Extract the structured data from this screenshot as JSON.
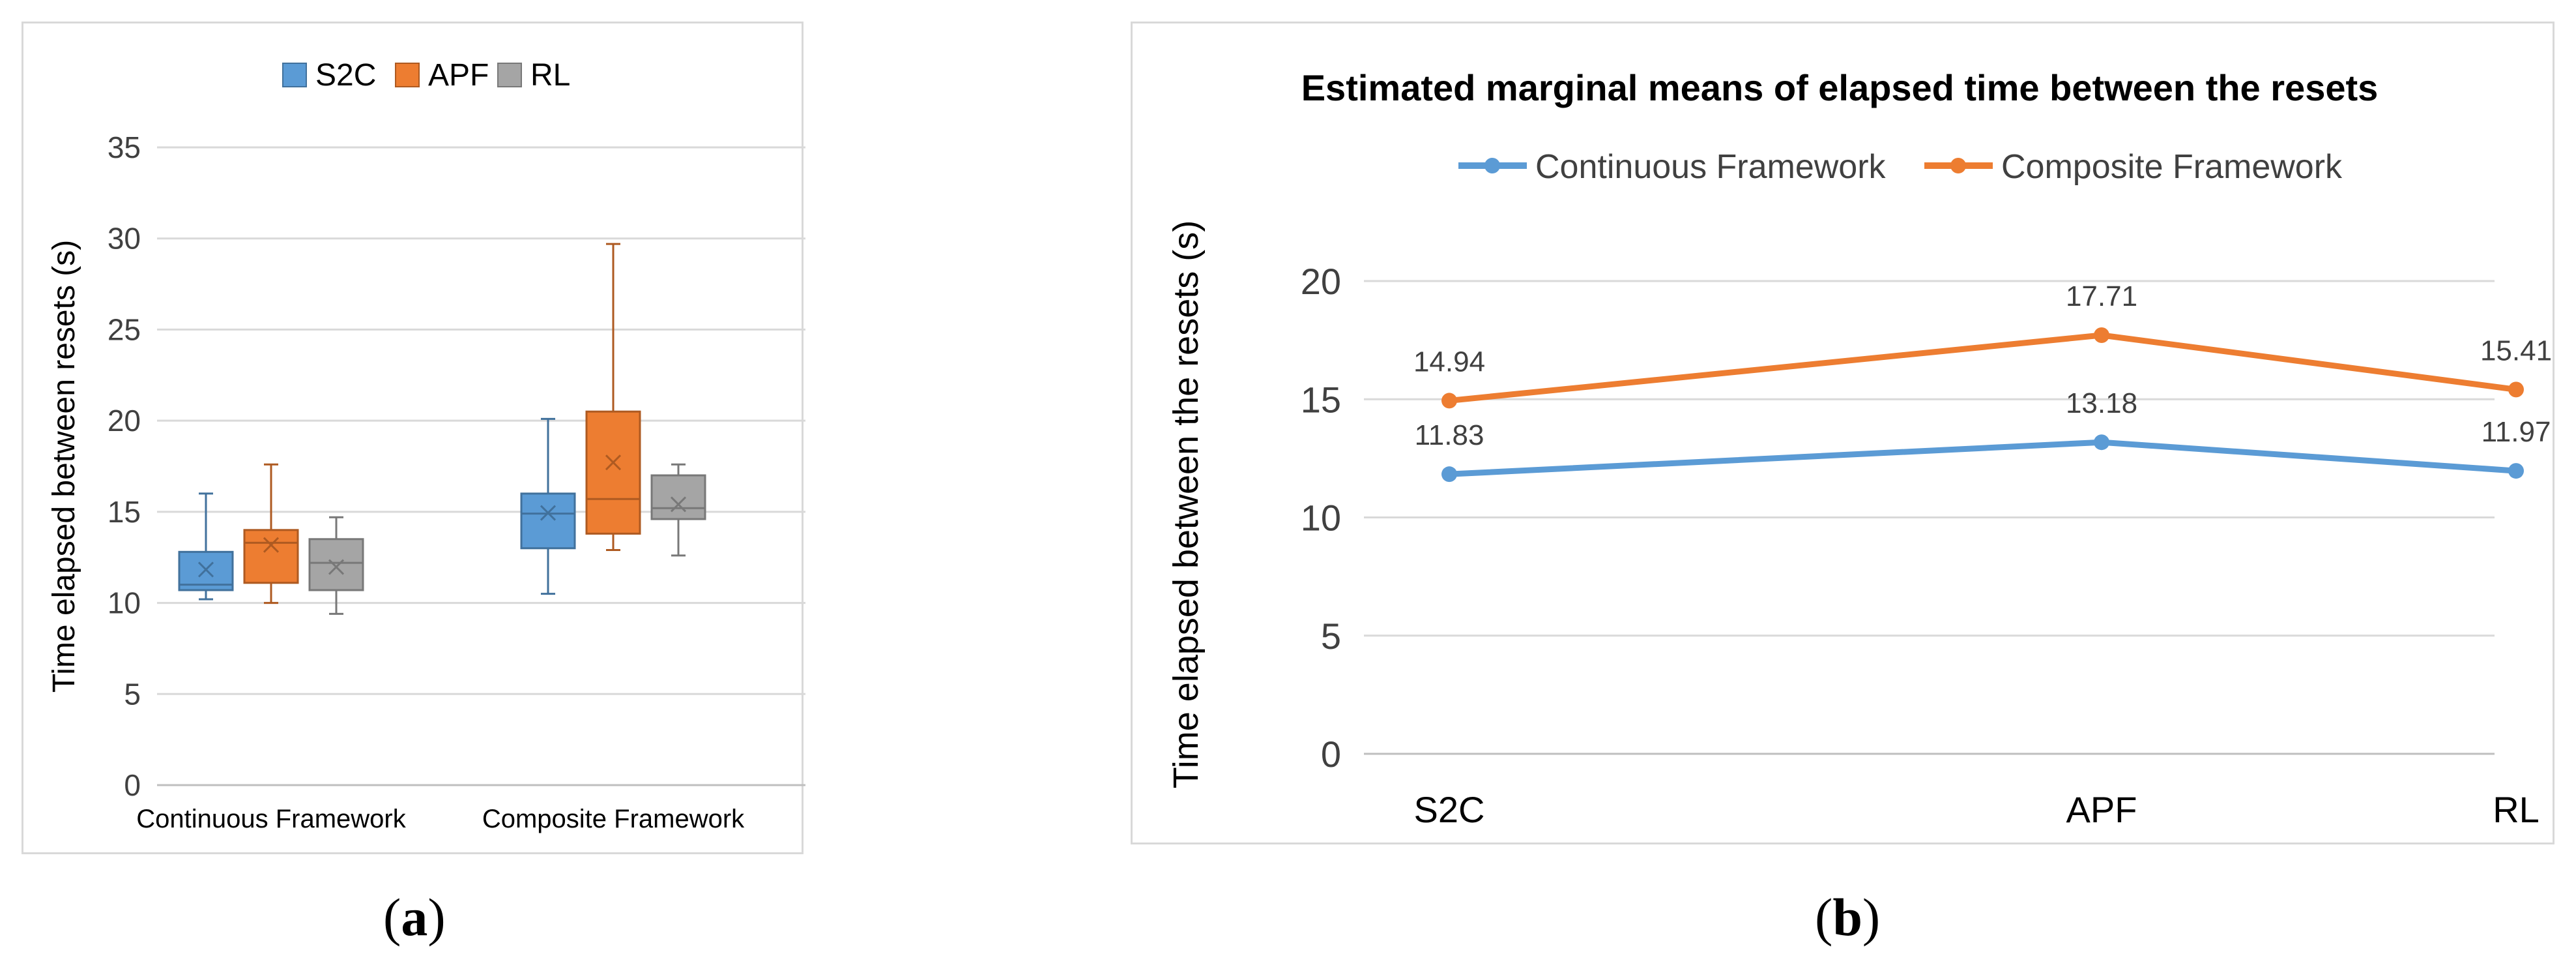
{
  "captions": {
    "a": {
      "open": "(",
      "letter": "a",
      "close": ")"
    },
    "b": {
      "open": "(",
      "letter": "b",
      "close": ")"
    }
  },
  "chart_data": [
    {
      "id": "a",
      "type": "boxplot",
      "title": "",
      "ylabel": "Time elapsed between resets (s)",
      "xlabel": "",
      "ylim": [
        0,
        35
      ],
      "yticks": [
        0,
        5,
        10,
        15,
        20,
        25,
        30,
        35
      ],
      "grid": true,
      "legend_position": "top-center",
      "categories": [
        "Continuous Framework",
        "Composite Framework"
      ],
      "series": [
        {
          "name": "S2C",
          "color": "#5b9bd5",
          "edge": "#41719c",
          "boxes": [
            {
              "min": 10.2,
              "q1": 10.7,
              "median": 11.0,
              "q3": 12.8,
              "max": 16.0,
              "mean": 11.83
            },
            {
              "min": 10.5,
              "q1": 13.0,
              "median": 14.9,
              "q3": 16.0,
              "max": 20.1,
              "mean": 14.94
            }
          ]
        },
        {
          "name": "APF",
          "color": "#ed7d31",
          "edge": "#ae5a21",
          "boxes": [
            {
              "min": 10.0,
              "q1": 11.1,
              "median": 13.3,
              "q3": 14.0,
              "max": 17.6,
              "mean": 13.18
            },
            {
              "min": 12.9,
              "q1": 13.8,
              "median": 15.7,
              "q3": 20.5,
              "max": 29.7,
              "mean": 17.71
            }
          ]
        },
        {
          "name": "RL",
          "color": "#a5a5a5",
          "edge": "#787878",
          "boxes": [
            {
              "min": 9.4,
              "q1": 10.7,
              "median": 12.2,
              "q3": 13.5,
              "max": 14.7,
              "mean": 11.97
            },
            {
              "min": 12.6,
              "q1": 14.6,
              "median": 15.2,
              "q3": 17.0,
              "max": 17.6,
              "mean": 15.41
            }
          ]
        }
      ]
    },
    {
      "id": "b",
      "type": "line",
      "title": "Estimated marginal means of elapsed time between the resets",
      "ylabel": "Time elapsed between the resets (s)",
      "xlabel": "",
      "ylim": [
        0,
        20
      ],
      "yticks": [
        0,
        5,
        10,
        15,
        20
      ],
      "grid": true,
      "legend_position": "top-center",
      "categories": [
        "S2C",
        "APF",
        "RL"
      ],
      "series": [
        {
          "name": "Continuous Framework",
          "color": "#5b9bd5",
          "values": [
            11.83,
            13.18,
            11.97
          ],
          "labels": [
            "11.83",
            "13.18",
            "11.97"
          ]
        },
        {
          "name": "Composite Framework",
          "color": "#ed7d31",
          "values": [
            14.94,
            17.71,
            15.41
          ],
          "labels": [
            "14.94",
            "17.71",
            "15.41"
          ]
        }
      ]
    }
  ]
}
